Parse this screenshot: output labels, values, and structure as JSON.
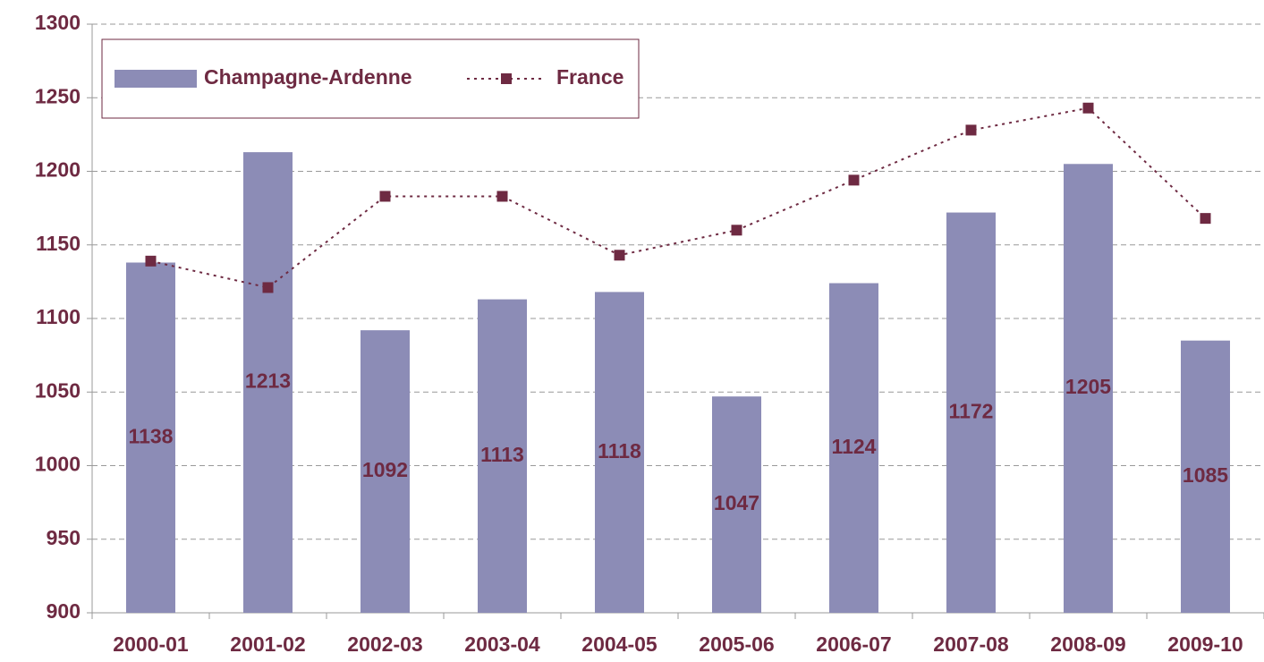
{
  "chart_data": {
    "type": "bar",
    "categories": [
      "2000-01",
      "2001-02",
      "2002-03",
      "2003-04",
      "2004-05",
      "2005-06",
      "2006-07",
      "2007-08",
      "2008-09",
      "2009-10"
    ],
    "series": [
      {
        "name": "Champagne-Ardenne",
        "type": "bar",
        "color": "#8c8cb6",
        "values": [
          1138,
          1213,
          1092,
          1113,
          1118,
          1047,
          1124,
          1172,
          1205,
          1085
        ]
      },
      {
        "name": "France",
        "type": "line",
        "color": "#6e2a42",
        "values": [
          1139,
          1121,
          1183,
          1183,
          1143,
          1160,
          1194,
          1228,
          1243,
          1168
        ]
      }
    ],
    "ylim": [
      900,
      1300
    ],
    "yticks": [
      900,
      950,
      1000,
      1050,
      1100,
      1150,
      1200,
      1250,
      1300
    ],
    "grid": true,
    "legend": "top-left"
  }
}
